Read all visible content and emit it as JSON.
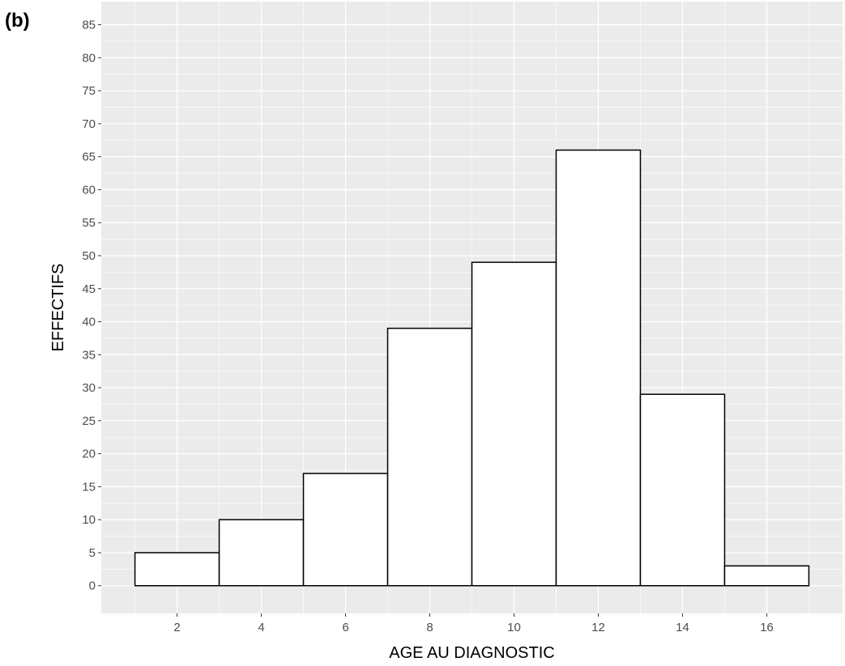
{
  "panel_label": "(b)",
  "chart_data": {
    "type": "bar",
    "title": "",
    "xlabel": "AGE AU DIAGNOSTIC",
    "ylabel": "EFFECTIFS",
    "bins": [
      {
        "x0": 1,
        "x1": 3,
        "value": 5
      },
      {
        "x0": 3,
        "x1": 5,
        "value": 10
      },
      {
        "x0": 5,
        "x1": 7,
        "value": 17
      },
      {
        "x0": 7,
        "x1": 9,
        "value": 39
      },
      {
        "x0": 9,
        "x1": 11,
        "value": 49
      },
      {
        "x0": 11,
        "x1": 13,
        "value": 66
      },
      {
        "x0": 13,
        "x1": 15,
        "value": 29
      },
      {
        "x0": 15,
        "x1": 17,
        "value": 3
      }
    ],
    "xticks": [
      2,
      4,
      6,
      8,
      10,
      12,
      14,
      16
    ],
    "yticks": [
      0,
      5,
      10,
      15,
      20,
      25,
      30,
      35,
      40,
      45,
      50,
      55,
      60,
      65,
      70,
      75,
      80,
      85
    ],
    "xlim": [
      0.2,
      17.8
    ],
    "ylim": [
      -4.2,
      88.5
    ],
    "grid": true,
    "colors": {
      "panel_background": "#ebebeb",
      "grid": "#ffffff",
      "bar_fill": "#ffffff",
      "bar_stroke": "#000000"
    }
  }
}
